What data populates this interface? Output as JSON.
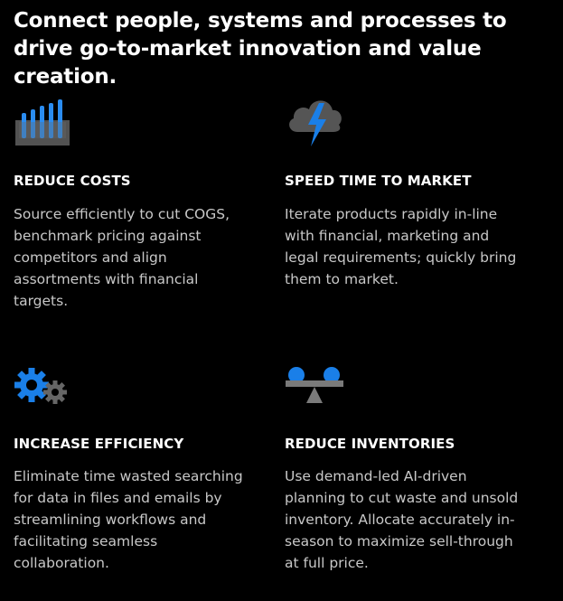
{
  "headline": "Connect people, systems and processes to drive go-to-market innovation and value creation.",
  "colors": {
    "accent_blue": "#1a7fe8",
    "icon_gray": "#555555",
    "background": "#000000",
    "body_text": "#c8c8c8"
  },
  "cards": [
    {
      "icon": "bar-chart-icon",
      "title": "REDUCE COSTS",
      "description": "Source efficiently to cut COGS, benchmark pricing against competitors and align assortments with financial targets."
    },
    {
      "icon": "cloud-lightning-icon",
      "title": "SPEED TIME TO MARKET",
      "description": "Iterate products rapidly in-line with financial, marketing and legal requirements; quickly bring them to market."
    },
    {
      "icon": "gears-icon",
      "title": "INCREASE EFFICIENCY",
      "description": "Eliminate time wasted searching for data in files and emails by streamlining workflows and facilitating seamless collaboration."
    },
    {
      "icon": "balance-scale-icon",
      "title": "REDUCE INVENTORIES",
      "description": "Use demand-led AI-driven planning to cut waste and unsold inventory. Allocate accurately in-season to maximize sell-through at full price."
    }
  ]
}
